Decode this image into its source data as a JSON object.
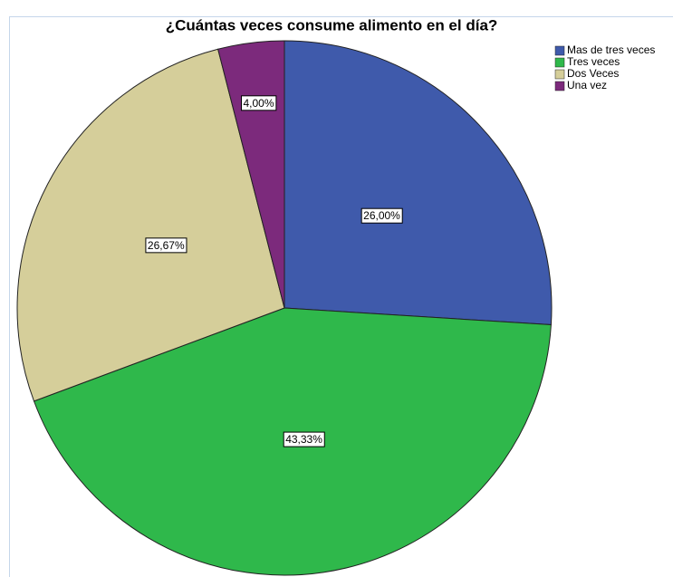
{
  "chart_data": {
    "type": "pie",
    "title": "¿Cuántas veces consume alimento en el día?",
    "categories": [
      "Mas de tres veces",
      "Tres veces",
      "Dos Veces",
      "Una vez"
    ],
    "values": [
      26,
      43.33,
      26.67,
      4
    ],
    "value_labels": [
      "26,00%",
      "43,33%",
      "26,67%",
      "4,00%"
    ],
    "colors": [
      "#3f5aab",
      "#2fb84b",
      "#d5ce9a",
      "#7c2a7c"
    ],
    "legend": "top-right"
  }
}
